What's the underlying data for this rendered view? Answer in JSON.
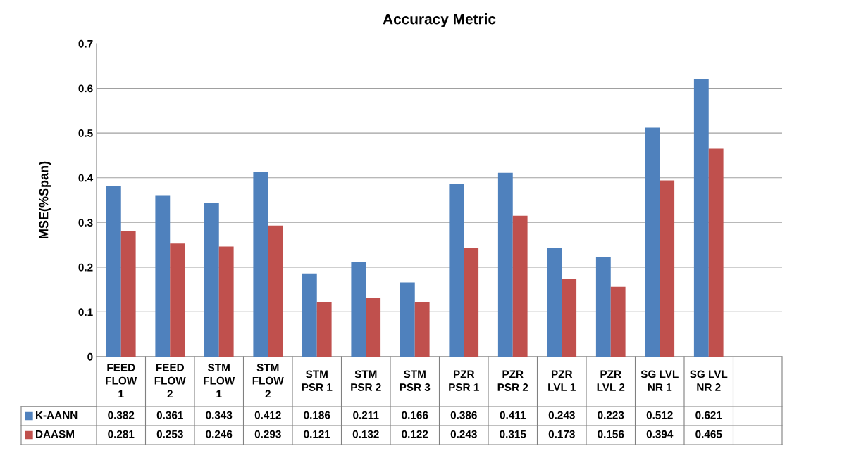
{
  "chart_data": {
    "type": "bar",
    "title": "Accuracy Metric",
    "ylabel": "MSE(%Span)",
    "categories": [
      "FEED\nFLOW\n1",
      "FEED\nFLOW\n2",
      "STM\nFLOW\n1",
      "STM\nFLOW\n2",
      "STM\nPSR 1",
      "STM\nPSR 2",
      "STM\nPSR 3",
      "PZR\nPSR 1",
      "PZR\nPSR 2",
      "PZR\nLVL 1",
      "PZR\nLVL 2",
      "SG LVL\nNR 1",
      "SG LVL\nNR 2",
      null
    ],
    "series": [
      {
        "name": "K-AANN",
        "color": "#4f81bd",
        "values": [
          0.382,
          0.361,
          0.343,
          0.412,
          0.186,
          0.211,
          0.166,
          0.386,
          0.411,
          0.243,
          0.223,
          0.512,
          0.621,
          null
        ]
      },
      {
        "name": "DAASM",
        "color": "#c0504d",
        "values": [
          0.281,
          0.253,
          0.246,
          0.293,
          0.121,
          0.132,
          0.122,
          0.243,
          0.315,
          0.173,
          0.156,
          0.394,
          0.465,
          null
        ]
      }
    ],
    "ylim": [
      0,
      0.7
    ],
    "yticks": [
      0,
      0.1,
      0.2,
      0.3,
      0.4,
      0.5,
      0.6,
      0.7
    ],
    "grid": "y",
    "data_labels": true,
    "legend": "bottom"
  }
}
